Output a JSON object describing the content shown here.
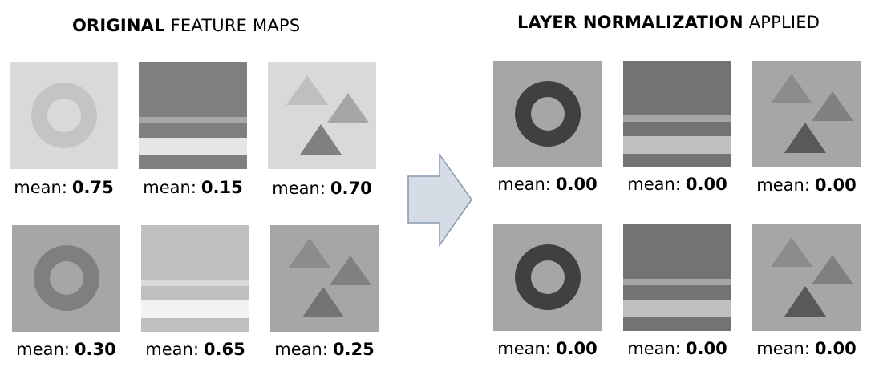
{
  "left_title": {
    "bold": "ORIGINAL",
    "rest": "FEATURE MAPS"
  },
  "right_title": {
    "bold": "LAYER NORMALIZATION",
    "rest": "APPLIED"
  },
  "mean_label": "mean:",
  "original": [
    {
      "kind": "ring",
      "mean": "0.75",
      "bg": "#d9d9d9",
      "fg": "#c4c4c4",
      "hole": "#d9d9d9"
    },
    {
      "kind": "stripes",
      "mean": "0.15",
      "bg": "#7f7f7f",
      "band1": "#a6a6a6",
      "band2": "#e6e6e6"
    },
    {
      "kind": "triangles",
      "mean": "0.70",
      "bg": "#d9d9d9",
      "t1": "#bfbfbf",
      "t2": "#a6a6a6",
      "t3": "#808080"
    },
    {
      "kind": "ring",
      "mean": "0.30",
      "bg": "#a6a6a6",
      "fg": "#7f7f7f",
      "hole": "#a6a6a6"
    },
    {
      "kind": "stripes",
      "mean": "0.65",
      "bg": "#bfbfbf",
      "band1": "#d9d9d9",
      "band2": "#f2f2f2"
    },
    {
      "kind": "triangles",
      "mean": "0.25",
      "bg": "#a6a6a6",
      "t1": "#8c8c8c",
      "t2": "#808080",
      "t3": "#737373"
    }
  ],
  "normalized": [
    {
      "kind": "ring",
      "mean": "0.00",
      "bg": "#a6a6a6",
      "fg": "#404040",
      "hole": "#a6a6a6"
    },
    {
      "kind": "stripes",
      "mean": "0.00",
      "bg": "#737373",
      "band1": "#a6a6a6",
      "band2": "#bfbfbf"
    },
    {
      "kind": "triangles",
      "mean": "0.00",
      "bg": "#a6a6a6",
      "t1": "#8c8c8c",
      "t2": "#808080",
      "t3": "#595959"
    },
    {
      "kind": "ring",
      "mean": "0.00",
      "bg": "#a6a6a6",
      "fg": "#404040",
      "hole": "#a6a6a6"
    },
    {
      "kind": "stripes",
      "mean": "0.00",
      "bg": "#737373",
      "band1": "#a6a6a6",
      "band2": "#bfbfbf"
    },
    {
      "kind": "triangles",
      "mean": "0.00",
      "bg": "#a6a6a6",
      "t1": "#8c8c8c",
      "t2": "#808080",
      "t3": "#595959"
    }
  ],
  "arrow": {
    "icon": "right-arrow-icon",
    "fill": "#d6dce5",
    "stroke": "#8497b0"
  }
}
